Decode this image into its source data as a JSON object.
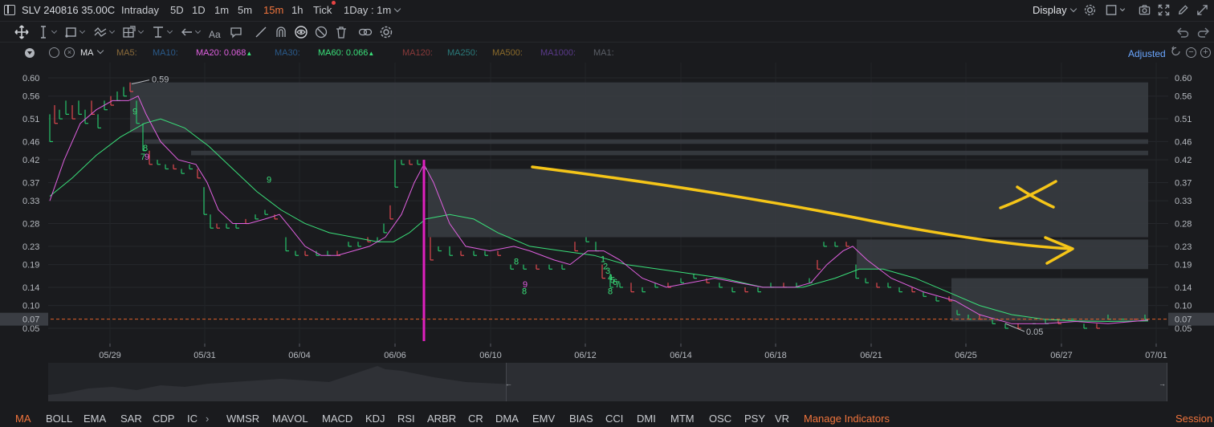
{
  "header": {
    "symbol": "SLV 240816 35.00C",
    "periods": [
      "Intraday",
      "5D",
      "1D",
      "1m",
      "5m",
      "15m",
      "1h",
      "Tick"
    ],
    "active_period": "15m",
    "range_selector": "1Day : 1m",
    "display_label": "Display"
  },
  "legend": {
    "indicator": "MA",
    "items": [
      {
        "label": "MA5:",
        "value": "",
        "color": "#8a6a3a"
      },
      {
        "label": "MA10:",
        "value": "",
        "color": "#2a5a8a"
      },
      {
        "label": "MA20:",
        "value": "0.068",
        "color": "#e060e0",
        "arrow": "▲"
      },
      {
        "label": "MA30:",
        "value": "",
        "color": "#2a5a8a"
      },
      {
        "label": "MA60:",
        "value": "0.066",
        "color": "#3ae07a",
        "arrow": "▲"
      },
      {
        "label": "MA120:",
        "value": "",
        "color": "#8a3a3a"
      },
      {
        "label": "MA250:",
        "value": "",
        "color": "#2a7a7a"
      },
      {
        "label": "MA500:",
        "value": "",
        "color": "#8a6a2a"
      },
      {
        "label": "MA1000:",
        "value": "",
        "color": "#5a3a8a"
      },
      {
        "label": "MA1:",
        "value": "",
        "color": "#5a5e66"
      }
    ],
    "adjusted_label": "Adjusted"
  },
  "chart_data": {
    "type": "line",
    "y_ticks": [
      "0.60",
      "0.56",
      "0.51",
      "0.46",
      "0.42",
      "0.37",
      "0.33",
      "0.28",
      "0.23",
      "0.19",
      "0.14",
      "0.10",
      "0.05"
    ],
    "x_ticks": [
      "05/29",
      "05/31",
      "06/04",
      "06/06",
      "06/10",
      "06/12",
      "06/14",
      "06/18",
      "06/21",
      "06/25",
      "06/27",
      "07/01"
    ],
    "current_price": "0.07",
    "high_label": "0.59",
    "low_label": "0.05",
    "series": [
      {
        "name": "MA20",
        "color": "#e060e0"
      },
      {
        "name": "MA60",
        "color": "#3ae07a"
      }
    ],
    "annotations": [
      "9",
      "9",
      "8",
      "7",
      "9",
      "8",
      "9",
      "8",
      "1",
      "2",
      "3",
      "4",
      "5",
      "6",
      "7",
      "8"
    ]
  },
  "bottom_tabs": {
    "items": [
      "MA",
      "BOLL",
      "EMA",
      "SAR",
      "CDP",
      "IC",
      "WMSR",
      "MAVOL",
      "MACD",
      "KDJ",
      "RSI",
      "ARBR",
      "CR",
      "DMA",
      "EMV",
      "BIAS",
      "CCI",
      "DMI",
      "MTM",
      "OSC",
      "PSY",
      "VR"
    ],
    "active": "MA",
    "manage_label": "Manage Indicators",
    "session_label": "Session"
  },
  "colors": {
    "accent": "#f0743c",
    "ma20": "#e060e0",
    "ma60": "#3ae07a",
    "drawing_yellow": "#f5c518",
    "drawing_magenta": "#e020c0",
    "zone_fill": "#3a3d43",
    "current_price_line": "#e0602a"
  },
  "icons": [
    "panel-icon",
    "move-icon",
    "cursor-icon",
    "rect-icon",
    "path-icon",
    "grid-icon",
    "level-icon",
    "arrow-left-icon",
    "text-icon",
    "comment-icon",
    "pencil-icon",
    "magnet-icon",
    "eye-icon",
    "hide-icon",
    "trash-icon",
    "link-icon",
    "settings-icon",
    "undo-icon",
    "redo-icon",
    "camera-icon",
    "fullscreen-icon",
    "draw-icon",
    "expand-icon"
  ]
}
